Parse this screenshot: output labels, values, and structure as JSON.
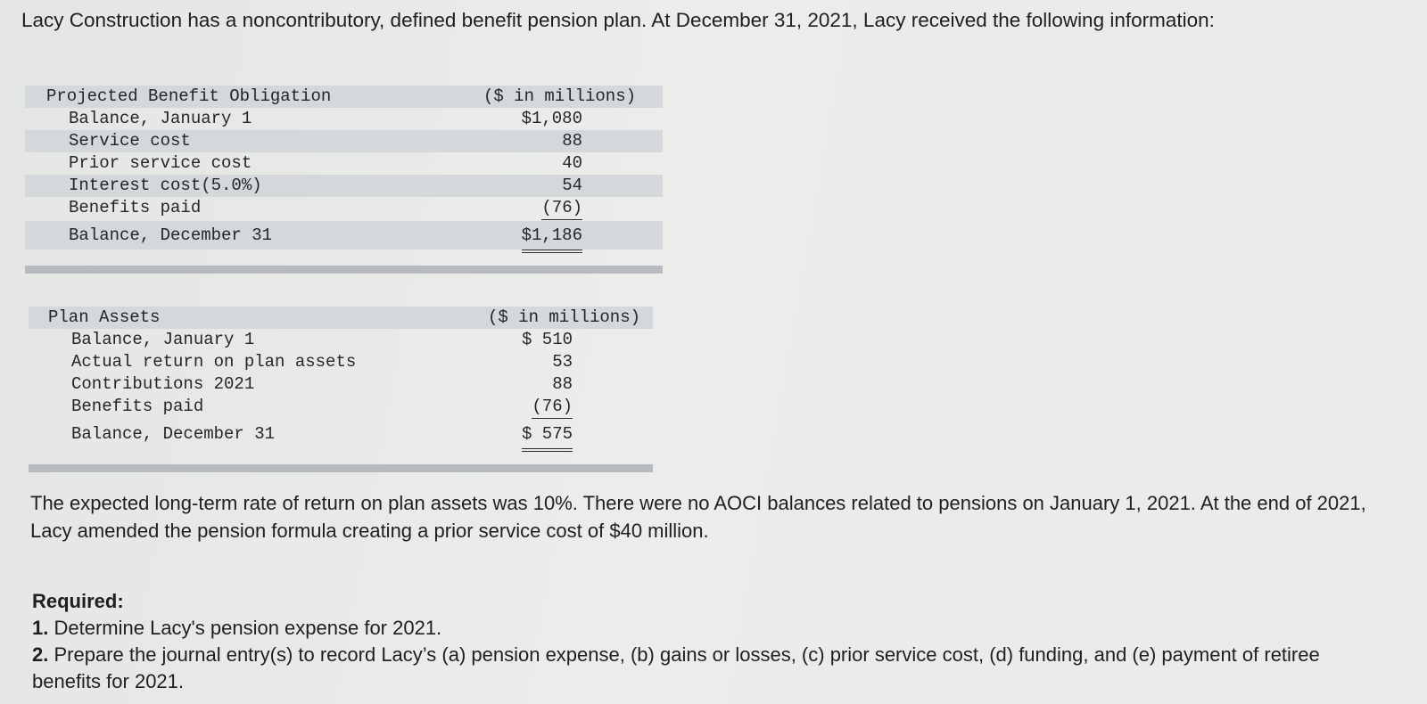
{
  "intro": "Lacy Construction has a noncontributory, defined benefit pension plan. At December 31, 2021, Lacy received the following information:",
  "pbo_table": {
    "title": "Projected Benefit Obligation",
    "unit": "($ in millions)",
    "rows": [
      {
        "label": "Balance, January 1",
        "value": "$1,080"
      },
      {
        "label": "Service cost",
        "value": "88"
      },
      {
        "label": "Prior service cost",
        "value": "40"
      },
      {
        "label": "Interest cost(5.0%)",
        "value": "54"
      },
      {
        "label": "Benefits paid",
        "value": "(76)"
      }
    ],
    "total": {
      "label": "Balance, December 31",
      "value": "$1,186"
    }
  },
  "assets_table": {
    "title": "Plan Assets",
    "unit": "($ in millions)",
    "rows": [
      {
        "label": "Balance, January 1",
        "value": "$ 510"
      },
      {
        "label": "Actual return on plan assets",
        "value": "53"
      },
      {
        "label": "Contributions 2021",
        "value": "88"
      },
      {
        "label": "Benefits paid",
        "value": "(76)"
      }
    ],
    "total": {
      "label": "Balance, December 31",
      "value": "$ 575"
    }
  },
  "paragraph": "The expected long-term rate of return on plan assets was 10%. There were no AOCI balances related to pensions on January 1, 2021. At the end of 2021, Lacy amended the pension formula creating a prior service cost of $40 million.",
  "required": {
    "title": "Required:",
    "items": [
      {
        "num": "1.",
        "text": "Determine Lacy's pension expense for 2021."
      },
      {
        "num": "2.",
        "text": "Prepare the journal entry(s) to record Lacy’s (a) pension expense, (b) gains or losses, (c) prior service cost, (d) funding, and (e) payment of retiree benefits for 2021."
      }
    ]
  }
}
